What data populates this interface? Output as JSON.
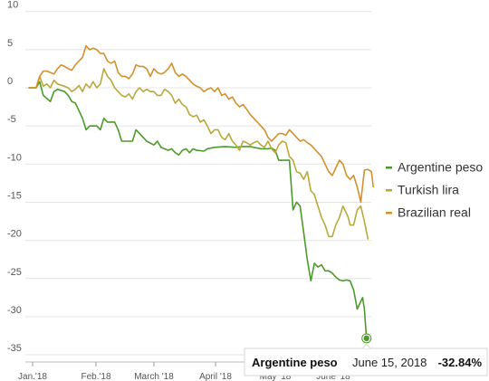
{
  "chart_data": {
    "type": "line",
    "title": "",
    "xlabel": "",
    "ylabel": "",
    "x_ticks": [
      "Jan.'18",
      "Feb.'18",
      "March '18",
      "April '18",
      "May '18",
      "June '18"
    ],
    "y_ticks": [
      10,
      5,
      0,
      -5,
      -10,
      -15,
      -20,
      -25,
      -30,
      -35
    ],
    "ylim": [
      -35.5,
      11
    ],
    "grid": true,
    "legend_position": "right",
    "series": [
      {
        "name": "Argentine peso",
        "color": "#4c9a2a",
        "points": [
          [
            0,
            0
          ],
          [
            2,
            0
          ],
          [
            3,
            0.8
          ],
          [
            4,
            -1
          ],
          [
            6,
            -1.8
          ],
          [
            7,
            -0.5
          ],
          [
            8,
            -0.2
          ],
          [
            10,
            -0.5
          ],
          [
            11,
            -1
          ],
          [
            12,
            -1.8
          ],
          [
            13,
            -2
          ],
          [
            14,
            -3
          ],
          [
            15,
            -4
          ],
          [
            16,
            -5.5
          ],
          [
            17,
            -5
          ],
          [
            19,
            -5
          ],
          [
            20,
            -5.5
          ],
          [
            21,
            -4
          ],
          [
            22,
            -4.5
          ],
          [
            24,
            -4.5
          ],
          [
            25,
            -5.5
          ],
          [
            26,
            -7
          ],
          [
            28,
            -7
          ],
          [
            29,
            -7
          ],
          [
            30,
            -5.5
          ],
          [
            31,
            -6
          ],
          [
            32,
            -6.5
          ],
          [
            33,
            -7
          ],
          [
            35,
            -7.5
          ],
          [
            36,
            -7
          ],
          [
            37,
            -7.8
          ],
          [
            38,
            -8
          ],
          [
            39,
            -8.2
          ],
          [
            40,
            -8
          ],
          [
            41,
            -8.5
          ],
          [
            42,
            -8.8
          ],
          [
            43,
            -8.2
          ],
          [
            44,
            -8
          ],
          [
            45,
            -8.5
          ],
          [
            46,
            -8
          ],
          [
            47,
            -8.2
          ],
          [
            49,
            -8.3
          ],
          [
            50,
            -8
          ],
          [
            52,
            -7.8
          ],
          [
            55,
            -7.7
          ],
          [
            58,
            -7.8
          ],
          [
            60,
            -7.7
          ],
          [
            62,
            -7.7
          ],
          [
            63,
            -7.8
          ],
          [
            65,
            -8
          ],
          [
            67,
            -8
          ],
          [
            68,
            -7.9
          ],
          [
            69,
            -8.2
          ],
          [
            70,
            -9.5
          ],
          [
            72,
            -9.5
          ],
          [
            73,
            -9.5
          ],
          [
            74,
            -16
          ],
          [
            75,
            -15
          ],
          [
            76,
            -15.5
          ],
          [
            77,
            -19
          ],
          [
            78,
            -22.5
          ],
          [
            79,
            -25.3
          ],
          [
            80,
            -23
          ],
          [
            81,
            -23.5
          ],
          [
            82,
            -23.2
          ],
          [
            83,
            -24
          ],
          [
            84,
            -24
          ],
          [
            85,
            -24.3
          ],
          [
            86,
            -24.8
          ],
          [
            87,
            -25.2
          ],
          [
            88,
            -25.3
          ],
          [
            89,
            -25.2
          ],
          [
            90,
            -25.3
          ],
          [
            91,
            -26.5
          ],
          [
            92,
            -29
          ],
          [
            93,
            -28
          ],
          [
            93.5,
            -27.5
          ],
          [
            94,
            -29
          ],
          [
            94.6,
            -32.84
          ]
        ]
      },
      {
        "name": "Turkish lira",
        "color": "#b9a93a",
        "points": [
          [
            0,
            0
          ],
          [
            2,
            0
          ],
          [
            3,
            1.5
          ],
          [
            4,
            0.2
          ],
          [
            5,
            0.5
          ],
          [
            6,
            0
          ],
          [
            7,
            1
          ],
          [
            8,
            0.5
          ],
          [
            10,
            0.2
          ],
          [
            11,
            0
          ],
          [
            12,
            -0.5
          ],
          [
            13,
            -0.2
          ],
          [
            14,
            0.3
          ],
          [
            15,
            -0.5
          ],
          [
            16,
            0.5
          ],
          [
            17,
            0
          ],
          [
            18,
            0.8
          ],
          [
            19,
            0
          ],
          [
            20,
            0.5
          ],
          [
            21,
            2.5
          ],
          [
            22,
            1.5
          ],
          [
            23,
            1
          ],
          [
            24,
            0
          ],
          [
            25,
            -0.5
          ],
          [
            26,
            -1
          ],
          [
            27,
            -1.2
          ],
          [
            28,
            -0.8
          ],
          [
            29,
            -1.5
          ],
          [
            30,
            -0.5
          ],
          [
            31,
            0
          ],
          [
            32,
            -0.5
          ],
          [
            33,
            -0.2
          ],
          [
            34,
            -0.5
          ],
          [
            35,
            -0.5
          ],
          [
            36,
            -1
          ],
          [
            37,
            -1
          ],
          [
            38,
            -0.2
          ],
          [
            39,
            -0.5
          ],
          [
            40,
            -1
          ],
          [
            41,
            -2
          ],
          [
            42,
            -1.5
          ],
          [
            43,
            -2.2
          ],
          [
            44,
            -2.5
          ],
          [
            45,
            -3.5
          ],
          [
            46,
            -3.8
          ],
          [
            47,
            -3.6
          ],
          [
            48,
            -4.5
          ],
          [
            49,
            -4.2
          ],
          [
            50,
            -5
          ],
          [
            51,
            -6
          ],
          [
            52,
            -5.5
          ],
          [
            53,
            -5.5
          ],
          [
            54,
            -6.5
          ],
          [
            55,
            -6.8
          ],
          [
            56,
            -6
          ],
          [
            57,
            -7
          ],
          [
            58,
            -7.5
          ],
          [
            59,
            -8.2
          ],
          [
            60,
            -7
          ],
          [
            61,
            -7.2
          ],
          [
            62,
            -7.5
          ],
          [
            63,
            -7.2
          ],
          [
            64,
            -7
          ],
          [
            65,
            -7.5
          ],
          [
            66,
            -7.8
          ],
          [
            67,
            -7
          ],
          [
            68,
            -8
          ],
          [
            69,
            -8.5
          ],
          [
            70,
            -7.5
          ],
          [
            71,
            -7
          ],
          [
            72,
            -7.2
          ],
          [
            73,
            -9
          ],
          [
            74,
            -9.5
          ],
          [
            75,
            -11
          ],
          [
            76,
            -11.2
          ],
          [
            77,
            -12
          ],
          [
            78,
            -11
          ],
          [
            79,
            -13.5
          ],
          [
            80,
            -14
          ],
          [
            81,
            -15.5
          ],
          [
            82,
            -17
          ],
          [
            83,
            -18
          ],
          [
            84,
            -19.5
          ],
          [
            85,
            -19.5
          ],
          [
            86,
            -18
          ],
          [
            87,
            -17
          ],
          [
            88,
            -15.5
          ],
          [
            89,
            -16.5
          ],
          [
            89.5,
            -17
          ],
          [
            90,
            -18
          ],
          [
            91,
            -18
          ],
          [
            92,
            -16
          ],
          [
            93,
            -15.5
          ],
          [
            94,
            -17.5
          ],
          [
            95,
            -19.8
          ]
        ]
      },
      {
        "name": "Brazilian real",
        "color": "#d4902a",
        "points": [
          [
            0,
            0
          ],
          [
            2,
            0
          ],
          [
            3,
            1.5
          ],
          [
            4,
            2.2
          ],
          [
            5,
            2.2
          ],
          [
            6,
            2
          ],
          [
            7,
            1.8
          ],
          [
            8,
            2.5
          ],
          [
            9,
            3
          ],
          [
            10,
            2.8
          ],
          [
            11,
            2.5
          ],
          [
            12,
            2.3
          ],
          [
            13,
            3
          ],
          [
            14,
            3.5
          ],
          [
            15,
            4
          ],
          [
            16,
            5.5
          ],
          [
            17,
            5
          ],
          [
            18,
            5.2
          ],
          [
            19,
            5
          ],
          [
            20,
            4.5
          ],
          [
            21,
            4.5
          ],
          [
            22,
            3.5
          ],
          [
            23,
            3.2
          ],
          [
            24,
            3.5
          ],
          [
            25,
            2
          ],
          [
            26,
            1.5
          ],
          [
            27,
            1.5
          ],
          [
            28,
            1.2
          ],
          [
            29,
            1.8
          ],
          [
            30,
            3
          ],
          [
            31,
            2.8
          ],
          [
            32,
            2.8
          ],
          [
            33,
            2.5
          ],
          [
            34,
            1.5
          ],
          [
            35,
            2.5
          ],
          [
            36,
            2
          ],
          [
            37,
            1.8
          ],
          [
            38,
            2
          ],
          [
            39,
            2.5
          ],
          [
            40,
            3.2
          ],
          [
            41,
            2
          ],
          [
            42,
            1.5
          ],
          [
            43,
            1.8
          ],
          [
            44,
            1.5
          ],
          [
            45,
            1
          ],
          [
            46,
            0.5
          ],
          [
            47,
            0.2
          ],
          [
            48,
            0
          ],
          [
            49,
            -0.5
          ],
          [
            50,
            -0.2
          ],
          [
            51,
            0
          ],
          [
            52,
            -0.5
          ],
          [
            53,
            0
          ],
          [
            54,
            -1
          ],
          [
            55,
            -0.8
          ],
          [
            56,
            -1.5
          ],
          [
            57,
            -1.2
          ],
          [
            58,
            -2
          ],
          [
            59,
            -2.5
          ],
          [
            60,
            -2.2
          ],
          [
            61,
            -2.8
          ],
          [
            62,
            -3.5
          ],
          [
            63,
            -4
          ],
          [
            64,
            -4.5
          ],
          [
            65,
            -5
          ],
          [
            66,
            -5.5
          ],
          [
            67,
            -6.5
          ],
          [
            68,
            -7
          ],
          [
            69,
            -6.5
          ],
          [
            70,
            -6
          ],
          [
            71,
            -6
          ],
          [
            72,
            -6.2
          ],
          [
            73,
            -5.5
          ],
          [
            74,
            -6
          ],
          [
            75,
            -6.5
          ],
          [
            76,
            -7
          ],
          [
            77,
            -6.8
          ],
          [
            78,
            -7.2
          ],
          [
            79,
            -7.5
          ],
          [
            80,
            -8
          ],
          [
            81,
            -8.5
          ],
          [
            82,
            -9
          ],
          [
            83,
            -10
          ],
          [
            84,
            -11
          ],
          [
            85,
            -11.5
          ],
          [
            86,
            -10.5
          ],
          [
            87,
            -9.5
          ],
          [
            88,
            -10
          ],
          [
            89,
            -11.5
          ],
          [
            90,
            -12
          ],
          [
            91,
            -11.5
          ],
          [
            92,
            -13
          ],
          [
            93,
            -15
          ],
          [
            94,
            -10.8
          ],
          [
            95,
            -10.7
          ],
          [
            96,
            -11
          ],
          [
            96.5,
            -13
          ]
        ]
      }
    ],
    "highlight": {
      "series": "Argentine peso",
      "date": "June 15, 2018",
      "value_label": "-32.84%",
      "x": 94.6,
      "y": -32.84
    }
  }
}
